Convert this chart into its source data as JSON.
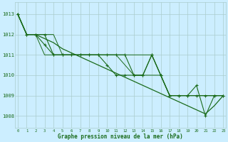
{
  "background_color": "#cceeff",
  "grid_color": "#aacccc",
  "line_color": "#1a6b1a",
  "marker_color": "#1a6b1a",
  "ylabel_values": [
    1008,
    1009,
    1010,
    1011,
    1012,
    1013
  ],
  "xlabel_values": [
    0,
    1,
    2,
    3,
    4,
    5,
    6,
    7,
    8,
    9,
    10,
    11,
    12,
    13,
    14,
    15,
    16,
    17,
    18,
    19,
    20,
    21,
    22,
    23
  ],
  "xlabel_label": "Graphe pression niveau de la mer (hPa)",
  "ylim": [
    1007.4,
    1013.6
  ],
  "xlim": [
    -0.3,
    23.3
  ],
  "series1": [
    1013.0,
    1012.0,
    1012.0,
    1012.0,
    1011.0,
    1011.0,
    1011.0,
    1011.0,
    1011.0,
    1011.0,
    1011.0,
    1011.0,
    1011.0,
    1010.0,
    1010.0,
    1011.0,
    1010.0,
    1009.0,
    1009.0,
    1009.0,
    1009.0,
    1009.0,
    1009.0,
    1009.0
  ],
  "series2": [
    1013.0,
    1012.0,
    1012.0,
    1012.0,
    1012.0,
    1011.0,
    1011.0,
    1011.0,
    1011.0,
    1011.0,
    1011.0,
    1011.0,
    1011.0,
    1011.0,
    1011.0,
    1011.0,
    1010.0,
    1009.0,
    1009.0,
    1009.0,
    1009.0,
    1009.0,
    1009.0,
    1009.0
  ],
  "series3": [
    1013.0,
    1012.0,
    1012.0,
    1011.0,
    1011.0,
    1011.0,
    1011.0,
    1011.0,
    1011.0,
    1011.0,
    1011.0,
    1011.0,
    1010.5,
    1010.0,
    1010.0,
    1010.0,
    1010.0,
    1009.0,
    1009.0,
    1009.0,
    1009.0,
    1009.0,
    1009.0,
    1009.0
  ],
  "series4": [
    1013.0,
    1012.0,
    1012.0,
    1011.8,
    1011.6,
    1011.3,
    1011.1,
    1010.9,
    1010.7,
    1010.5,
    1010.3,
    1010.1,
    1009.9,
    1009.7,
    1009.5,
    1009.3,
    1009.1,
    1008.9,
    1008.7,
    1008.5,
    1008.3,
    1008.1,
    1008.5,
    1009.0
  ],
  "series5_x": [
    0,
    1,
    2,
    3,
    4,
    5,
    6,
    7,
    8,
    9,
    10,
    11,
    12,
    13,
    14,
    15,
    16,
    17,
    18,
    19,
    20,
    21,
    22,
    23
  ],
  "series5": [
    1013.0,
    1012.0,
    1012.0,
    1011.5,
    1011.0,
    1011.0,
    1011.0,
    1011.0,
    1011.0,
    1011.0,
    1010.5,
    1010.0,
    1010.0,
    1010.0,
    1010.0,
    1011.0,
    1010.0,
    1009.0,
    1009.0,
    1009.0,
    1009.5,
    1008.0,
    1009.0,
    1009.0
  ]
}
